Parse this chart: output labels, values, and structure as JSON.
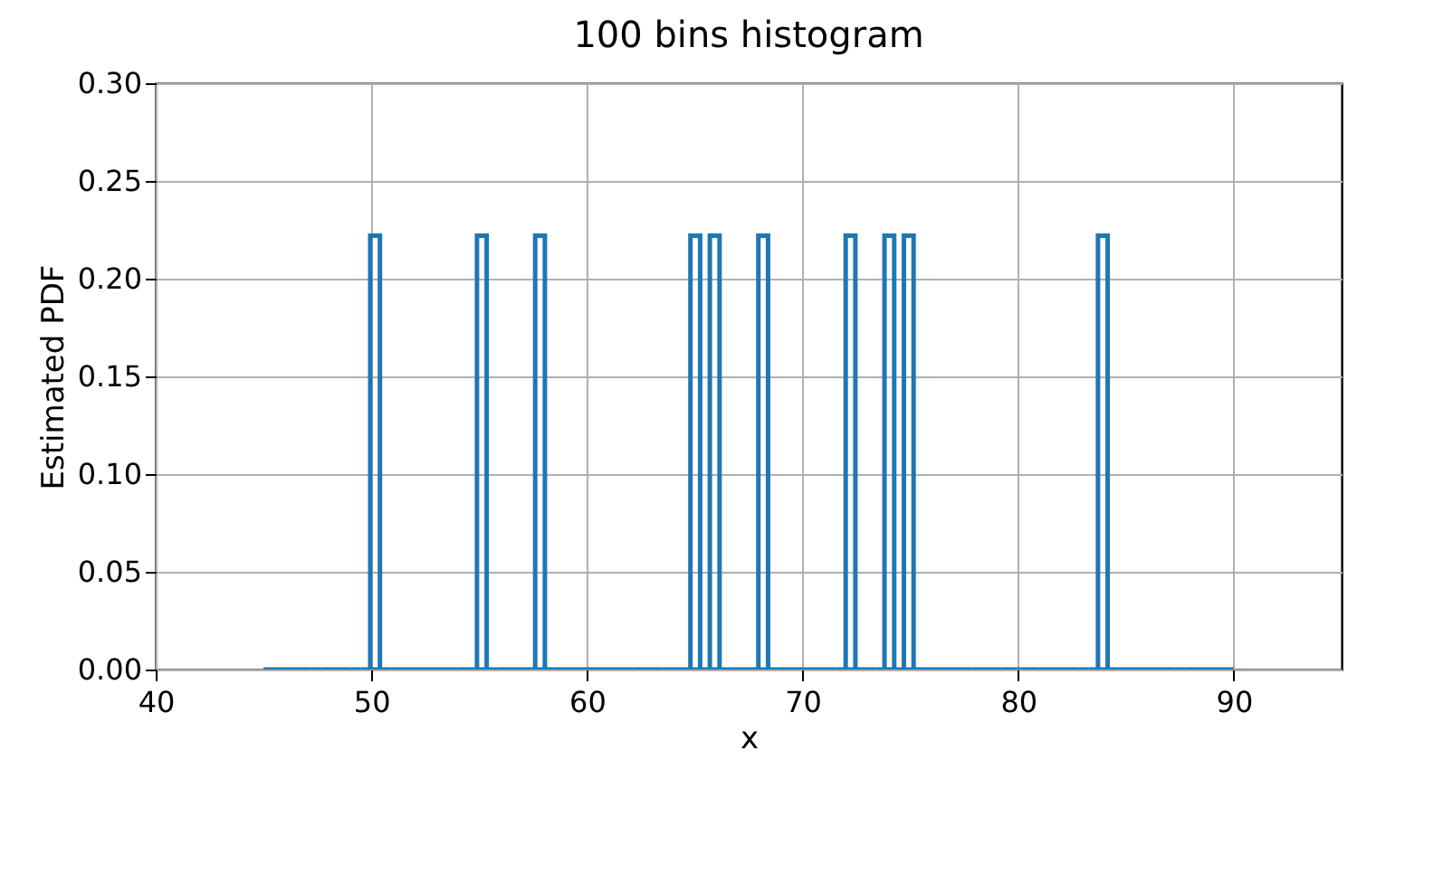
{
  "chart_data": {
    "type": "histogram",
    "title": "100 bins histogram",
    "xlabel": "x",
    "ylabel": "Estimated PDF",
    "bins": [
      45,
      45.45,
      45.9,
      46.35,
      46.8,
      47.25,
      47.7,
      48.15,
      48.6,
      49.05,
      49.5,
      49.95,
      50.4,
      50.85,
      51.3,
      51.75,
      52.2,
      52.65,
      53.1,
      53.55,
      54,
      54.45,
      54.9,
      55.35,
      55.8,
      56.25,
      56.7,
      57.15,
      57.6,
      58.05,
      58.5,
      58.95,
      59.4,
      59.85,
      60.3,
      60.75,
      61.2,
      61.65,
      62.1,
      62.55,
      63,
      63.45,
      63.9,
      64.35,
      64.8,
      65.25,
      65.7,
      66.15,
      66.6,
      67.05,
      67.5,
      67.95,
      68.4,
      68.85,
      69.3,
      69.75,
      70.2,
      70.65,
      71.1,
      71.55,
      72,
      72.45,
      72.9,
      73.35,
      73.8,
      74.25,
      74.7,
      75.15,
      75.6,
      76.05,
      76.5,
      76.95,
      77.4,
      77.85,
      78.3,
      78.75,
      79.2,
      79.65,
      80.1,
      80.55,
      81,
      81.45,
      81.9,
      82.35,
      82.8,
      83.25,
      83.7,
      84.15,
      84.6,
      85.05,
      85.5,
      85.95,
      86.4,
      86.85,
      87.3,
      87.75,
      88.2,
      88.65,
      89.1,
      89.55,
      90
    ],
    "values": [
      0,
      0,
      0,
      0,
      0,
      0,
      0,
      0,
      0,
      0,
      0,
      0.222,
      0,
      0,
      0,
      0,
      0,
      0,
      0,
      0,
      0,
      0,
      0.222,
      0,
      0,
      0,
      0,
      0,
      0.222,
      0,
      0,
      0,
      0,
      0,
      0,
      0,
      0,
      0,
      0,
      0,
      0,
      0,
      0,
      0,
      0.222,
      0,
      0.222,
      0,
      0,
      0,
      0,
      0.222,
      0,
      0,
      0,
      0,
      0,
      0,
      0,
      0,
      0.222,
      0,
      0,
      0,
      0.222,
      0,
      0.222,
      0,
      0,
      0,
      0,
      0,
      0,
      0,
      0,
      0,
      0,
      0,
      0,
      0,
      0,
      0,
      0,
      0,
      0,
      0,
      0.222,
      0,
      0,
      0,
      0,
      0,
      0,
      0,
      0,
      0,
      0,
      0,
      0,
      0
    ],
    "color": "#1f77b4",
    "xlim": [
      40,
      95
    ],
    "xticks": [
      40,
      50,
      60,
      70,
      80,
      90
    ],
    "ylim": [
      0,
      0.3
    ],
    "yticks": [
      {
        "value": 0,
        "label": "0.00"
      },
      {
        "value": 0.05,
        "label": "0.05"
      },
      {
        "value": 0.1,
        "label": "0.10"
      },
      {
        "value": 0.15,
        "label": "0.15"
      },
      {
        "value": 0.2,
        "label": "0.20"
      },
      {
        "value": 0.25,
        "label": "0.25"
      },
      {
        "value": 0.3,
        "label": "0.30"
      }
    ],
    "grid": true
  }
}
